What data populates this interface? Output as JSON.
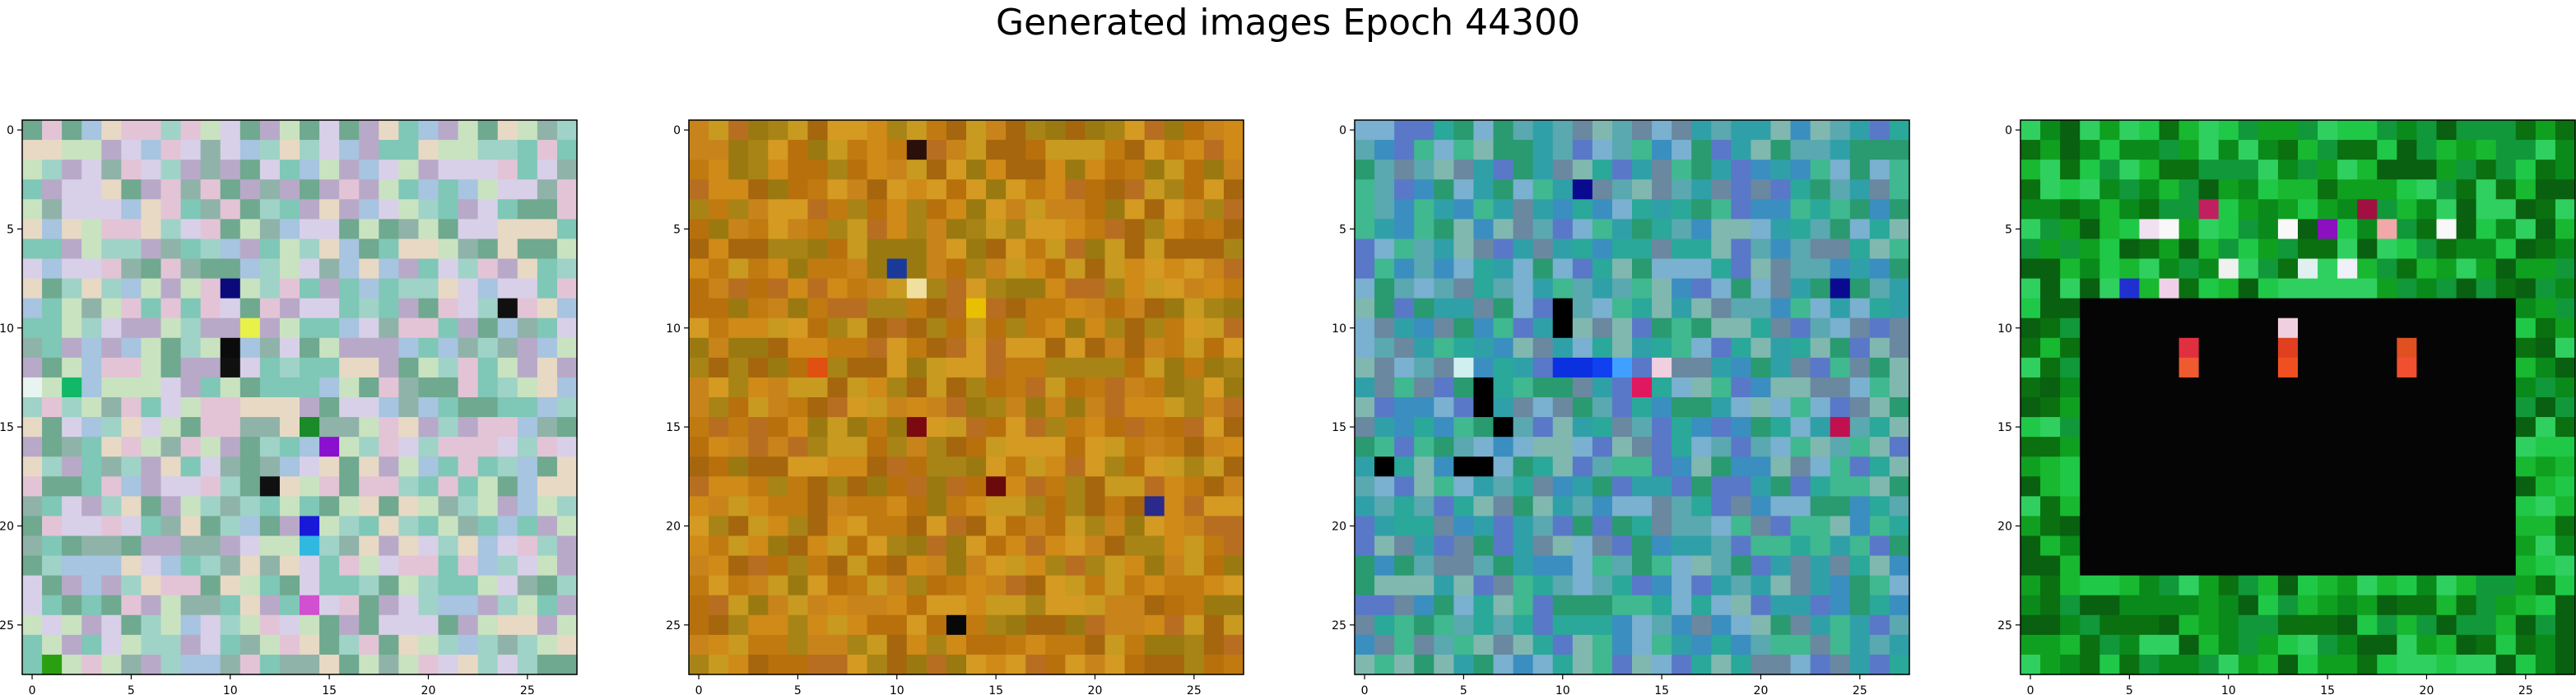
{
  "figure": {
    "title": "Generated images Epoch 44300"
  },
  "chart_data": [
    {
      "type": "heatmap",
      "name": "generated-image-1",
      "grid_size": 28,
      "style": "pastel-noise",
      "palette": [
        "#b8a9c9",
        "#9fd3c7",
        "#e3c4d6",
        "#a7c4e0",
        "#c9e3c0",
        "#8fb3a8",
        "#d8d0e8",
        "#6fa98f",
        "#e8d9c4",
        "#7fc7b6"
      ],
      "accent_cells": [
        {
          "row": 8,
          "col": 10,
          "color": "#0a0a7a"
        },
        {
          "row": 11,
          "col": 10,
          "color": "#0b0b0b"
        },
        {
          "row": 12,
          "col": 10,
          "color": "#101010"
        },
        {
          "row": 10,
          "col": 11,
          "color": "#e8f04a"
        },
        {
          "row": 15,
          "col": 14,
          "color": "#1a8a2a"
        },
        {
          "row": 16,
          "col": 15,
          "color": "#8a10d0"
        },
        {
          "row": 20,
          "col": 14,
          "color": "#1818d8"
        },
        {
          "row": 21,
          "col": 14,
          "color": "#30b8e0"
        },
        {
          "row": 24,
          "col": 14,
          "color": "#d050d0"
        },
        {
          "row": 18,
          "col": 12,
          "color": "#101010"
        },
        {
          "row": 9,
          "col": 24,
          "color": "#101010"
        },
        {
          "row": 13,
          "col": 0,
          "color": "#e8f4f0"
        },
        {
          "row": 13,
          "col": 2,
          "color": "#10b868"
        },
        {
          "row": 27,
          "col": 1,
          "color": "#2aa010"
        }
      ],
      "xticks": [
        0,
        5,
        10,
        15,
        20,
        25
      ],
      "yticks": [
        0,
        5,
        10,
        15,
        20,
        25
      ]
    },
    {
      "type": "heatmap",
      "name": "generated-image-2",
      "grid_size": 28,
      "style": "amber-noise",
      "palette": [
        "#c8841a",
        "#b8700c",
        "#d49a22",
        "#a6660e",
        "#c07a10",
        "#9a7a10",
        "#d08a18",
        "#b86e20",
        "#c89a20",
        "#a88416"
      ],
      "accent_cells": [
        {
          "row": 7,
          "col": 10,
          "color": "#1a3a9a"
        },
        {
          "row": 8,
          "col": 11,
          "color": "#f0e0a0"
        },
        {
          "row": 1,
          "col": 11,
          "color": "#2a1008"
        },
        {
          "row": 15,
          "col": 11,
          "color": "#7a0a10"
        },
        {
          "row": 18,
          "col": 15,
          "color": "#6a0a0a"
        },
        {
          "row": 19,
          "col": 23,
          "color": "#2a2a8a"
        },
        {
          "row": 25,
          "col": 13,
          "color": "#080808"
        },
        {
          "row": 9,
          "col": 14,
          "color": "#e8c000"
        },
        {
          "row": 12,
          "col": 6,
          "color": "#e05010"
        }
      ],
      "xticks": [
        0,
        5,
        10,
        15,
        20,
        25
      ],
      "yticks": [
        0,
        5,
        10,
        15,
        20,
        25
      ]
    },
    {
      "type": "heatmap",
      "name": "generated-image-3",
      "grid_size": 28,
      "style": "teal-noise",
      "palette": [
        "#2aa89a",
        "#3a8fc0",
        "#5aa8b0",
        "#2a9a70",
        "#7ab0d0",
        "#40b890",
        "#5a78c8",
        "#30a0a8",
        "#80b8b0",
        "#6a88a0"
      ],
      "accent_cells": [
        {
          "row": 3,
          "col": 11,
          "color": "#0a0a90"
        },
        {
          "row": 12,
          "col": 10,
          "color": "#0a30e0"
        },
        {
          "row": 12,
          "col": 11,
          "color": "#0a30e0"
        },
        {
          "row": 12,
          "col": 12,
          "color": "#1040f0"
        },
        {
          "row": 12,
          "col": 13,
          "color": "#40a0ff"
        },
        {
          "row": 13,
          "col": 14,
          "color": "#e01860"
        },
        {
          "row": 13,
          "col": 6,
          "color": "#000000"
        },
        {
          "row": 14,
          "col": 6,
          "color": "#000000"
        },
        {
          "row": 15,
          "col": 7,
          "color": "#000000"
        },
        {
          "row": 17,
          "col": 1,
          "color": "#000000"
        },
        {
          "row": 17,
          "col": 5,
          "color": "#000000"
        },
        {
          "row": 17,
          "col": 6,
          "color": "#000000"
        },
        {
          "row": 8,
          "col": 24,
          "color": "#0a0a90"
        },
        {
          "row": 15,
          "col": 24,
          "color": "#c01050"
        },
        {
          "row": 9,
          "col": 10,
          "color": "#000000"
        },
        {
          "row": 10,
          "col": 10,
          "color": "#000000"
        },
        {
          "row": 12,
          "col": 15,
          "color": "#f0d0e0"
        },
        {
          "row": 12,
          "col": 5,
          "color": "#d0f0f0"
        }
      ],
      "xticks": [
        0,
        5,
        10,
        15,
        20,
        25
      ],
      "yticks": [
        0,
        5,
        10,
        15,
        20,
        25
      ]
    },
    {
      "type": "heatmap",
      "name": "generated-image-4",
      "grid_size": 28,
      "style": "green-frame-dark-center",
      "palette": [
        "#0a8a1a",
        "#10a020",
        "#18b830",
        "#0a7010",
        "#20c848",
        "#086010",
        "#30d060",
        "#10983a"
      ],
      "dark_region": {
        "row_start": 9,
        "row_end": 22,
        "col_start": 3,
        "col_end": 24,
        "color": "#050505"
      },
      "accent_cells": [
        {
          "row": 5,
          "col": 6,
          "color": "#f0e0f0"
        },
        {
          "row": 5,
          "col": 7,
          "color": "#f8f8f8"
        },
        {
          "row": 5,
          "col": 13,
          "color": "#f8f8f8"
        },
        {
          "row": 5,
          "col": 21,
          "color": "#f8f8f8"
        },
        {
          "row": 5,
          "col": 18,
          "color": "#f0a8a8"
        },
        {
          "row": 4,
          "col": 9,
          "color": "#c02060"
        },
        {
          "row": 4,
          "col": 17,
          "color": "#a01040"
        },
        {
          "row": 5,
          "col": 15,
          "color": "#8a10c0"
        },
        {
          "row": 7,
          "col": 10,
          "color": "#f0f0f0"
        },
        {
          "row": 7,
          "col": 14,
          "color": "#e0f0f0"
        },
        {
          "row": 7,
          "col": 16,
          "color": "#f0f0f8"
        },
        {
          "row": 8,
          "col": 5,
          "color": "#2030d0"
        },
        {
          "row": 11,
          "col": 8,
          "color": "#e03040"
        },
        {
          "row": 12,
          "col": 8,
          "color": "#f05a30"
        },
        {
          "row": 11,
          "col": 13,
          "color": "#e04020"
        },
        {
          "row": 12,
          "col": 13,
          "color": "#f05020"
        },
        {
          "row": 11,
          "col": 19,
          "color": "#e05020"
        },
        {
          "row": 12,
          "col": 19,
          "color": "#f05030"
        },
        {
          "row": 10,
          "col": 13,
          "color": "#f0d0e0"
        },
        {
          "row": 8,
          "col": 7,
          "color": "#f0d0e8"
        }
      ],
      "xticks": [
        0,
        5,
        10,
        15,
        20,
        25
      ],
      "yticks": [
        0,
        5,
        10,
        15,
        20,
        25
      ]
    }
  ]
}
